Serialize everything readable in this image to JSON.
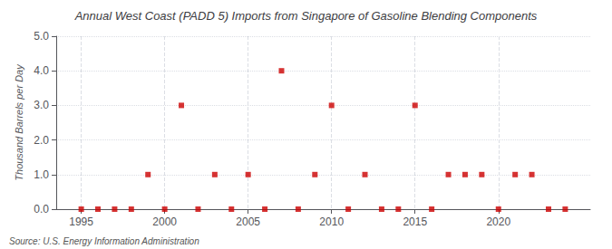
{
  "chart_data": {
    "type": "scatter",
    "title": "Annual West Coast (PADD 5) Imports from Singapore of Gasoline Blending Components",
    "ylabel": "Thousand Barrels per Day",
    "annotations": [
      "Source: U.S. Energy Information Administration"
    ],
    "x": [
      1995,
      1996,
      1997,
      1998,
      1999,
      2000,
      2001,
      2002,
      2003,
      2004,
      2005,
      2006,
      2007,
      2008,
      2009,
      2010,
      2011,
      2012,
      2013,
      2014,
      2015,
      2016,
      2017,
      2018,
      2019,
      2020,
      2021,
      2022,
      2023,
      2024
    ],
    "values": [
      0,
      0,
      0,
      0,
      1,
      0,
      3,
      0,
      1,
      0,
      1,
      0,
      4,
      0,
      1,
      3,
      0,
      1,
      0,
      0,
      3,
      0,
      1,
      1,
      1,
      0,
      1,
      1,
      0,
      0
    ],
    "color": "#cc0000",
    "marker": "square",
    "xlim": [
      1993.5,
      2025.5
    ],
    "xticks": [
      1995,
      2000,
      2005,
      2010,
      2015,
      2020
    ],
    "ylim": [
      0,
      5.0
    ],
    "yticks": [
      {
        "value": 0,
        "label": "0.0"
      },
      {
        "value": 1,
        "label": "1.0"
      },
      {
        "value": 2,
        "label": "2.0"
      },
      {
        "value": 3,
        "label": "3.0"
      },
      {
        "value": 4,
        "label": "4.0"
      },
      {
        "value": 5,
        "label": "5.0"
      }
    ],
    "grid": true
  }
}
